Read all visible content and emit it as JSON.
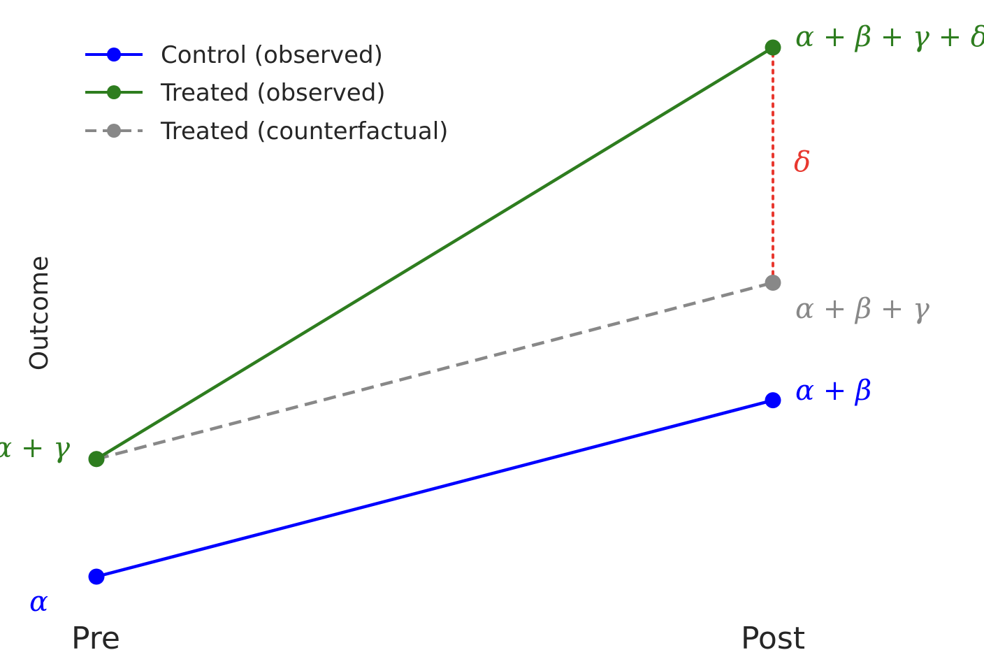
{
  "chart_data": {
    "type": "line",
    "title": "",
    "xlabel": "",
    "ylabel": "Outcome",
    "categories": [
      "Pre",
      "Post"
    ],
    "ylim": [
      0.6,
      5.6
    ],
    "grid": false,
    "legend_position": "top-left",
    "series": [
      {
        "name": "Control (observed)",
        "values": [
          1,
          2.5
        ],
        "color": "#0000ff",
        "style": "solid"
      },
      {
        "name": "Treated (observed)",
        "values": [
          2,
          5.5
        ],
        "color": "#2e7d1f",
        "style": "solid"
      },
      {
        "name": "Treated (counterfactual)",
        "values": [
          2,
          3.5
        ],
        "color": "#888888",
        "style": "dashed"
      }
    ],
    "effect": {
      "label": "δ",
      "from": 3.5,
      "to": 5.5,
      "color": "#e8382f",
      "style": "dotted"
    },
    "annotations": [
      {
        "text": "α",
        "color": "#0000ff"
      },
      {
        "text": "α + γ",
        "color": "#2e7d1f"
      },
      {
        "text": "α + β",
        "color": "#0000ff"
      },
      {
        "text": "α + β + γ",
        "color": "#888888"
      },
      {
        "text": "α + β + γ + δ",
        "color": "#2e7d1f"
      }
    ]
  }
}
